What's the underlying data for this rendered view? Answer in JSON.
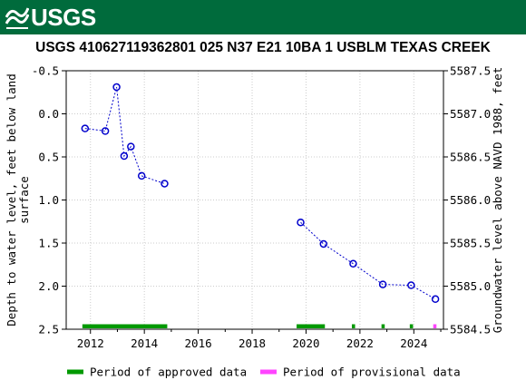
{
  "header": {
    "logo_text": "USGS",
    "logo_icon": "usgs-wave-icon",
    "brand_color": "#006b3c"
  },
  "title": "USGS 410627119362801 025  N37 E21 10BA  1    USBLM TEXAS CREEK",
  "chart_data": {
    "type": "scatter",
    "title": "USGS 410627119362801 025  N37 E21 10BA  1    USBLM TEXAS CREEK",
    "ylabel_left": "Depth to water level, feet below land\nsurface",
    "ylabel_right": "Groundwater level above NAVD 1988, feet",
    "xlim": [
      2011.1,
      2025.1
    ],
    "ylim_left": [
      -0.5,
      2.5
    ],
    "ylim_right": [
      5587.5,
      5584.5
    ],
    "x_ticks": [
      2012,
      2014,
      2016,
      2018,
      2020,
      2022,
      2024
    ],
    "y_ticks_left": [
      -0.5,
      0.0,
      0.5,
      1.0,
      1.5,
      2.0,
      2.5
    ],
    "y_ticks_right": [
      5587.5,
      5587.0,
      5586.5,
      5586.0,
      5585.5,
      5585.0,
      5584.5
    ],
    "grid": true,
    "series": [
      {
        "color": "#0000cc",
        "x": [
          2011.8,
          2012.55,
          2012.97,
          2013.25,
          2013.5,
          2013.9,
          2014.75,
          2019.8,
          2020.65,
          2021.75,
          2022.85,
          2023.9,
          2024.8
        ],
        "y": [
          0.17,
          0.2,
          -0.31,
          0.49,
          0.38,
          0.72,
          0.81,
          1.26,
          1.51,
          1.74,
          1.98,
          1.99,
          2.15
        ]
      }
    ],
    "approved_periods": [
      [
        2011.7,
        2014.85
      ],
      [
        2019.65,
        2020.7
      ],
      [
        2021.7,
        2021.82
      ],
      [
        2022.8,
        2022.92
      ],
      [
        2023.85,
        2023.97
      ]
    ],
    "provisional_periods": [
      [
        2024.72,
        2024.84
      ]
    ],
    "legend": {
      "placement": "bottom",
      "items": [
        {
          "label": "Period of approved data",
          "color": "#009900"
        },
        {
          "label": "Period of provisional data",
          "color": "#ff44ff"
        }
      ]
    }
  }
}
